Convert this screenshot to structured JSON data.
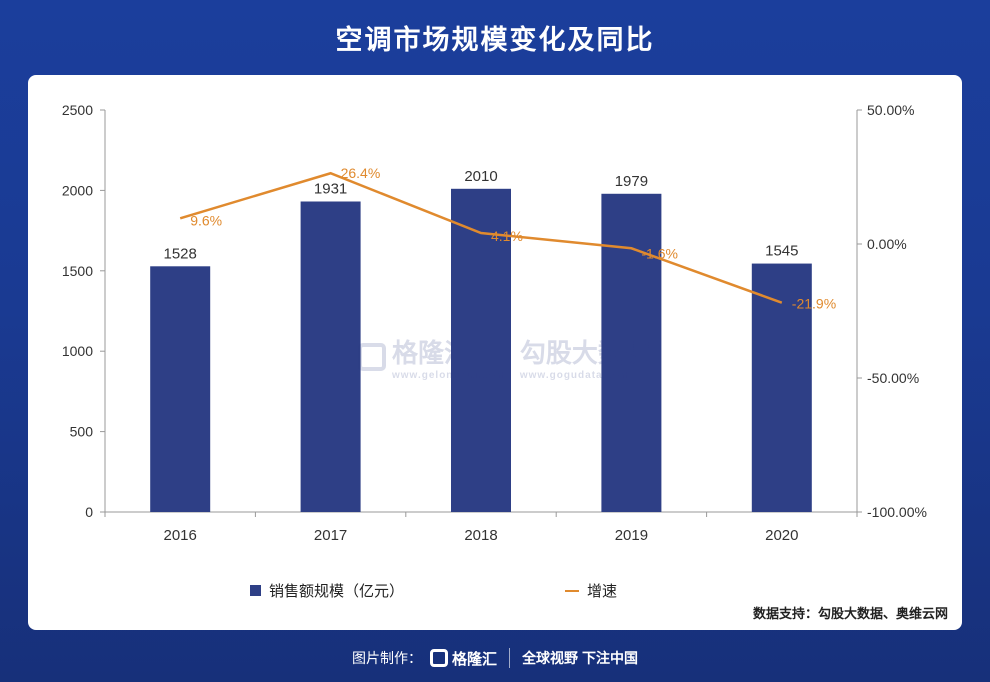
{
  "title": "空调市场规模变化及同比",
  "chart_data": {
    "type": "bar+line",
    "categories": [
      "2016",
      "2017",
      "2018",
      "2019",
      "2020"
    ],
    "series": [
      {
        "name": "销售额规模（亿元）",
        "type": "bar",
        "axis": "left",
        "values": [
          1528,
          1931,
          2010,
          1979,
          1545
        ],
        "labels": [
          "1528",
          "1931",
          "2010",
          "1979",
          "1545"
        ],
        "color": "#2e3f86"
      },
      {
        "name": "增速",
        "type": "line",
        "axis": "right",
        "values": [
          9.6,
          26.4,
          4.1,
          -1.6,
          -21.9
        ],
        "labels": [
          "9.6%",
          "26.4%",
          "4.1%",
          "-1.6%",
          "-21.9%"
        ],
        "color": "#e08a2e"
      }
    ],
    "left_axis": {
      "ylim": [
        0,
        2500
      ],
      "ticks": [
        "0",
        "500",
        "1000",
        "1500",
        "2000",
        "2500"
      ]
    },
    "right_axis": {
      "ylim": [
        -100,
        50
      ],
      "ticks": [
        "-100.00%",
        "-50.00%",
        "0.00%",
        "50.00%"
      ]
    },
    "grid": false,
    "legend_position": "bottom"
  },
  "legend": {
    "bar": "销售额规模（亿元）",
    "line": "增速"
  },
  "source": "数据支持：勾股大数据、奥维云网",
  "watermark": {
    "brand": "格隆汇",
    "brand_site": "www.gelonghui.com",
    "partner": "勾股大数据",
    "partner_site": "www.gogudata.com"
  },
  "footer": {
    "label": "图片制作：",
    "brand": "格隆汇",
    "slogan": "全球视野 下注中国"
  },
  "colors": {
    "background": "#1b3e9c",
    "bar": "#2e3f86",
    "line": "#e08a2e"
  }
}
